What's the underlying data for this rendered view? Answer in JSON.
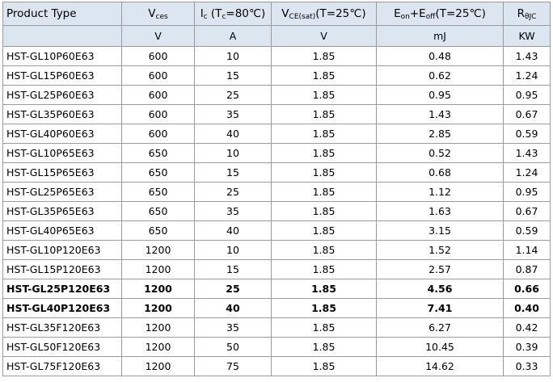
{
  "header": {
    "columns": [
      [
        "Product Type"
      ],
      [
        "V",
        "ces"
      ],
      [
        "I",
        "c",
        " (T",
        "c",
        "=80℃)"
      ],
      [
        "V",
        "CE(sat)",
        "(T=25℃)"
      ],
      [
        "E",
        "on",
        "+E",
        "off",
        "(T=25℃)"
      ],
      [
        "R",
        "θJC"
      ]
    ],
    "units": [
      "V",
      "A",
      "V",
      "mJ",
      "KW"
    ]
  },
  "table": {
    "rows": [
      {
        "cells": [
          "HST-GL10P60E63",
          "600",
          "10",
          "1.85",
          "0.48",
          "1.43"
        ]
      },
      {
        "cells": [
          "HST-GL15P60E63",
          "600",
          "15",
          "1.85",
          "0.62",
          "1.24"
        ]
      },
      {
        "cells": [
          "HST-GL25P60E63",
          "600",
          "25",
          "1.85",
          "0.95",
          "0.95"
        ]
      },
      {
        "cells": [
          "HST-GL35P60E63",
          "600",
          "35",
          "1.85",
          "1.43",
          "0.67"
        ]
      },
      {
        "cells": [
          "HST-GL40P60E63",
          "600",
          "40",
          "1.85",
          "2.85",
          "0.59"
        ]
      },
      {
        "cells": [
          "HST-GL10P65E63",
          "650",
          "10",
          "1.85",
          "0.52",
          "1.43"
        ]
      },
      {
        "cells": [
          "HST-GL15P65E63",
          "650",
          "15",
          "1.85",
          "0.68",
          "1.24"
        ]
      },
      {
        "cells": [
          "HST-GL25P65E63",
          "650",
          "25",
          "1.85",
          "1.12",
          "0.95"
        ]
      },
      {
        "cells": [
          "HST-GL35P65E63",
          "650",
          "35",
          "1.85",
          "1.63",
          "0.67"
        ]
      },
      {
        "cells": [
          "HST-GL40P65E63",
          "650",
          "40",
          "1.85",
          "3.15",
          "0.59"
        ]
      },
      {
        "cells": [
          "HST-GL10P120E63",
          "1200",
          "10",
          "1.85",
          "1.52",
          "1.14"
        ]
      },
      {
        "cells": [
          "HST-GL15P120E63",
          "1200",
          "15",
          "1.85",
          "2.57",
          "0.87"
        ]
      },
      {
        "cells": [
          "HST-GL25P120E63",
          "1200",
          "25",
          "1.85",
          "4.56",
          "0.66"
        ],
        "bold": true
      },
      {
        "cells": [
          "HST-GL40P120E63",
          "1200",
          "40",
          "1.85",
          "7.41",
          "0.40"
        ],
        "bold": true
      },
      {
        "cells": [
          "HST-GL35F120E63",
          "1200",
          "35",
          "1.85",
          "6.27",
          "0.42"
        ]
      },
      {
        "cells": [
          "HST-GL50F120E63",
          "1200",
          "50",
          "1.85",
          "10.45",
          "0.39"
        ]
      },
      {
        "cells": [
          "HST-GL75F120E63",
          "1200",
          "75",
          "1.85",
          "14.62",
          "0.33"
        ]
      }
    ]
  }
}
